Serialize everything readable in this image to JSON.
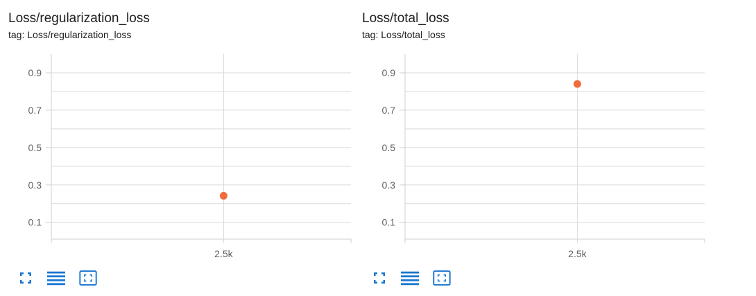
{
  "colors": {
    "point": "#f06b3c",
    "icon": "#1976d2",
    "grid": "#dadada",
    "tick_text": "#616161"
  },
  "cards": [
    {
      "title": "Loss/regularization_loss",
      "tag": "tag: Loss/regularization_loss",
      "toolbar": {
        "icons": [
          "fullscreen-icon",
          "data-table-icon",
          "fit-domain-icon"
        ]
      }
    },
    {
      "title": "Loss/total_loss",
      "tag": "tag: Loss/total_loss",
      "toolbar": {
        "icons": [
          "fullscreen-icon",
          "data-table-icon",
          "fit-domain-icon"
        ]
      }
    }
  ],
  "chart_data": [
    {
      "type": "scatter",
      "title": "Loss/regularization_loss",
      "subtitle": "tag: Loss/regularization_loss",
      "x": [
        2500
      ],
      "y": [
        0.242
      ],
      "xlim": [
        1350,
        3350
      ],
      "ylim": [
        0.01,
        1.0
      ],
      "x_ticks": [
        2500
      ],
      "x_tick_labels": [
        "2.5k"
      ],
      "y_ticks": [
        0.1,
        0.3,
        0.5,
        0.7,
        0.9
      ],
      "y_tick_labels": [
        "0.1",
        "0.3",
        "0.5",
        "0.7",
        "0.9"
      ],
      "y_minor_ticks": [
        0.2,
        0.4,
        0.6,
        0.8
      ],
      "grid": true
    },
    {
      "type": "scatter",
      "title": "Loss/total_loss",
      "subtitle": "tag: Loss/total_loss",
      "x": [
        2500
      ],
      "y": [
        0.84
      ],
      "xlim": [
        1350,
        3350
      ],
      "ylim": [
        0.01,
        1.0
      ],
      "x_ticks": [
        2500
      ],
      "x_tick_labels": [
        "2.5k"
      ],
      "y_ticks": [
        0.1,
        0.3,
        0.5,
        0.7,
        0.9
      ],
      "y_tick_labels": [
        "0.1",
        "0.3",
        "0.5",
        "0.7",
        "0.9"
      ],
      "y_minor_ticks": [
        0.2,
        0.4,
        0.6,
        0.8
      ],
      "grid": true
    }
  ]
}
